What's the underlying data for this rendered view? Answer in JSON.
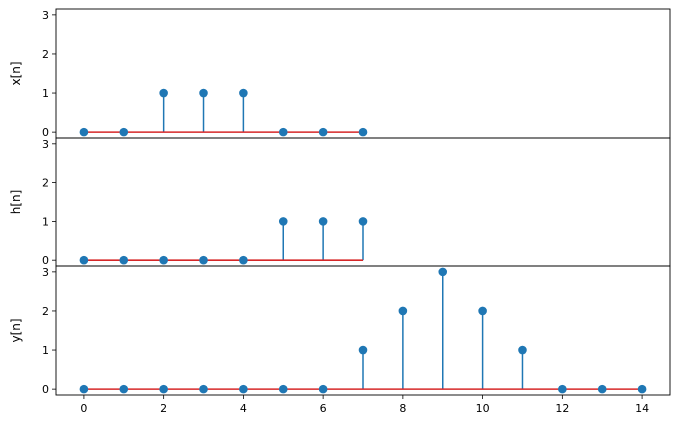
{
  "colors": {
    "stem": "#1f77b4",
    "baseline": "#d62728",
    "frame": "#000000"
  },
  "chart_data": [
    {
      "type": "stem",
      "ylabel": "x[n]",
      "x": [
        0,
        1,
        2,
        3,
        4,
        5,
        6,
        7
      ],
      "values": [
        0,
        0,
        1,
        1,
        1,
        0,
        0,
        0
      ],
      "xlim": [
        -0.7,
        14.7
      ],
      "ylim": [
        -0.15,
        3.15
      ],
      "yticks": [
        "0",
        "1",
        "2",
        "3"
      ],
      "show_xticks": false
    },
    {
      "type": "stem",
      "ylabel": "h[n]",
      "x": [
        0,
        1,
        2,
        3,
        4,
        5,
        6,
        7
      ],
      "values": [
        0,
        0,
        0,
        0,
        0,
        1,
        1,
        1
      ],
      "xlim": [
        -0.7,
        14.7
      ],
      "ylim": [
        -0.15,
        3.15
      ],
      "yticks": [
        "0",
        "1",
        "2",
        "3"
      ],
      "show_xticks": false
    },
    {
      "type": "stem",
      "ylabel": "y[n]",
      "x": [
        0,
        1,
        2,
        3,
        4,
        5,
        6,
        7,
        8,
        9,
        10,
        11,
        12,
        13,
        14
      ],
      "values": [
        0,
        0,
        0,
        0,
        0,
        0,
        0,
        1,
        2,
        3,
        2,
        1,
        0,
        0,
        0
      ],
      "xlim": [
        -0.7,
        14.7
      ],
      "ylim": [
        -0.15,
        3.15
      ],
      "yticks": [
        "0",
        "1",
        "2",
        "3"
      ],
      "xticks": [
        "0",
        "2",
        "4",
        "6",
        "8",
        "10",
        "12",
        "14"
      ],
      "show_xticks": true
    }
  ]
}
